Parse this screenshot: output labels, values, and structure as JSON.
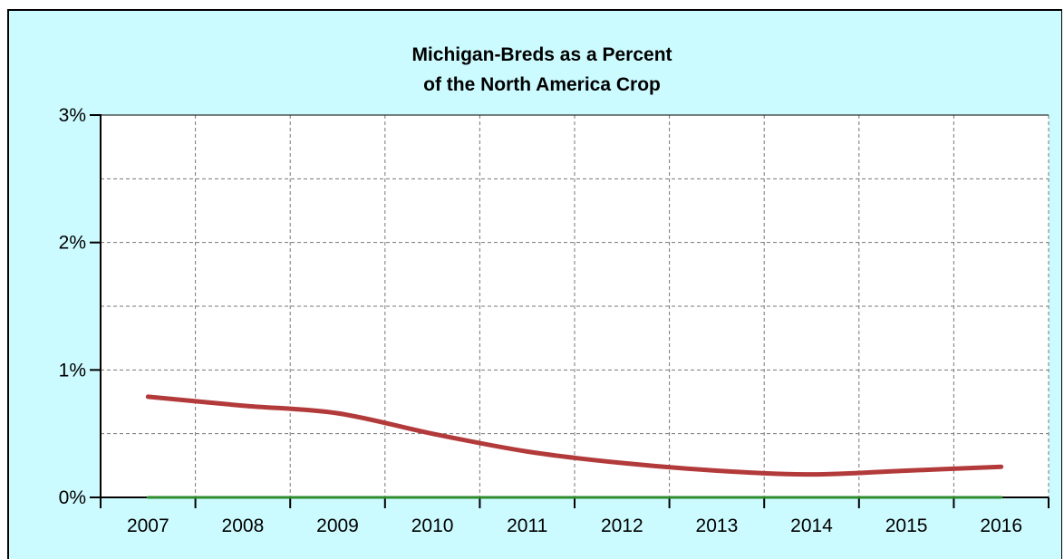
{
  "chart_data": {
    "type": "line",
    "title": [
      "Michigan-Breds as a Percent",
      "of the North America Crop"
    ],
    "xlabel": "",
    "ylabel": "",
    "categories": [
      "2007",
      "2008",
      "2009",
      "2010",
      "2011",
      "2012",
      "2013",
      "2014",
      "2015",
      "2016"
    ],
    "y_ticks": [
      "0%",
      "1%",
      "2%",
      "3%"
    ],
    "ylim": [
      0,
      3
    ],
    "grid": true,
    "series": [
      {
        "color": "#b33a3a",
        "values": [
          0.79,
          0.72,
          0.66,
          0.5,
          0.36,
          0.27,
          0.21,
          0.18,
          0.21,
          0.24
        ]
      },
      {
        "color": "#2e8b2e",
        "values": [
          0,
          0,
          0,
          0,
          0,
          0,
          0,
          0,
          0,
          0
        ]
      }
    ],
    "colors": {
      "background": "#ccfbff",
      "plot": "#ffffff"
    }
  }
}
